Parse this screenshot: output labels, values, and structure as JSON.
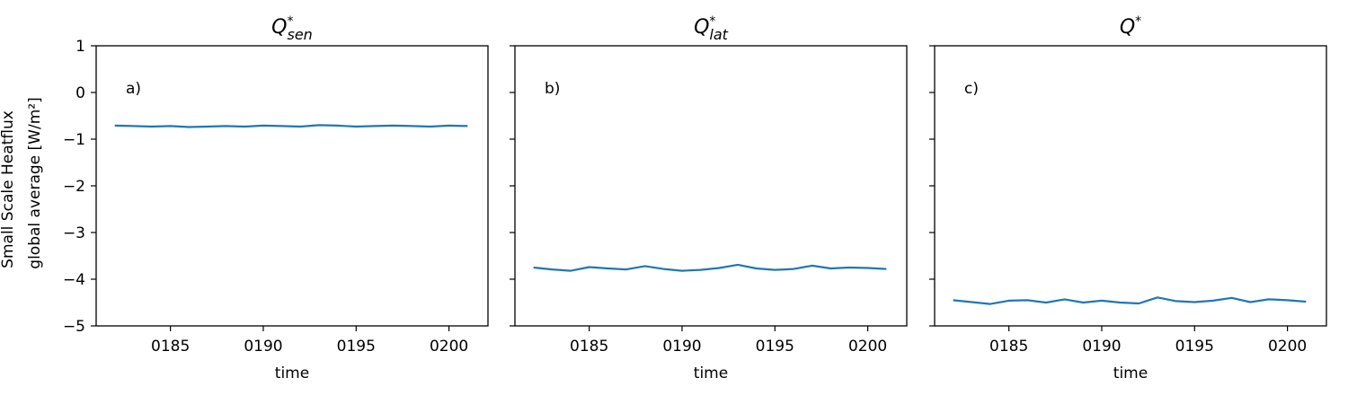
{
  "figure": {
    "ylabel_line1": "Small Scale Heatflux",
    "ylabel_line2": "global average [W/m²]",
    "xlabel": "time"
  },
  "chart_data": [
    {
      "type": "line",
      "title": "Q*_sen",
      "panel_label": "a)",
      "xlabel": "time",
      "ylabel": "Small Scale Heatflux global average [W/m²]",
      "ylim": [
        -5,
        1
      ],
      "xlim": [
        181.0,
        202.1
      ],
      "yticks": [
        1,
        0,
        -1,
        -2,
        -3,
        -4,
        -5
      ],
      "xticks": [
        "0185",
        "0190",
        "0195",
        "0200"
      ],
      "grid": false,
      "color": "#1f77b4",
      "series": [
        {
          "x": [
            182,
            183,
            184,
            185,
            186,
            187,
            188,
            189,
            190,
            191,
            192,
            193,
            194,
            195,
            196,
            197,
            198,
            199,
            200,
            201
          ],
          "y": [
            -0.71,
            -0.72,
            -0.73,
            -0.72,
            -0.74,
            -0.73,
            -0.72,
            -0.73,
            -0.71,
            -0.72,
            -0.73,
            -0.7,
            -0.71,
            -0.73,
            -0.72,
            -0.71,
            -0.72,
            -0.73,
            -0.71,
            -0.72
          ]
        }
      ]
    },
    {
      "type": "line",
      "title": "Q*_lat",
      "panel_label": "b)",
      "xlabel": "time",
      "ylabel": "",
      "ylim": [
        -5,
        1
      ],
      "xlim": [
        181.0,
        202.1
      ],
      "xticks": [
        "0185",
        "0190",
        "0195",
        "0200"
      ],
      "grid": false,
      "color": "#1f77b4",
      "series": [
        {
          "x": [
            182,
            183,
            184,
            185,
            186,
            187,
            188,
            189,
            190,
            191,
            192,
            193,
            194,
            195,
            196,
            197,
            198,
            199,
            200,
            201
          ],
          "y": [
            -3.75,
            -3.79,
            -3.82,
            -3.74,
            -3.77,
            -3.79,
            -3.72,
            -3.78,
            -3.82,
            -3.8,
            -3.76,
            -3.69,
            -3.77,
            -3.8,
            -3.78,
            -3.71,
            -3.77,
            -3.75,
            -3.76,
            -3.78
          ]
        }
      ]
    },
    {
      "type": "line",
      "title": "Q*",
      "panel_label": "c)",
      "xlabel": "time",
      "ylabel": "",
      "ylim": [
        -5,
        1
      ],
      "xlim": [
        181.0,
        202.1
      ],
      "xticks": [
        "0185",
        "0190",
        "0195",
        "0200"
      ],
      "grid": false,
      "color": "#1f77b4",
      "series": [
        {
          "x": [
            182,
            183,
            184,
            185,
            186,
            187,
            188,
            189,
            190,
            191,
            192,
            193,
            194,
            195,
            196,
            197,
            198,
            199,
            200,
            201
          ],
          "y": [
            -4.45,
            -4.49,
            -4.53,
            -4.46,
            -4.45,
            -4.5,
            -4.43,
            -4.5,
            -4.46,
            -4.5,
            -4.52,
            -4.39,
            -4.47,
            -4.49,
            -4.46,
            -4.4,
            -4.49,
            -4.43,
            -4.45,
            -4.48
          ]
        }
      ]
    }
  ]
}
